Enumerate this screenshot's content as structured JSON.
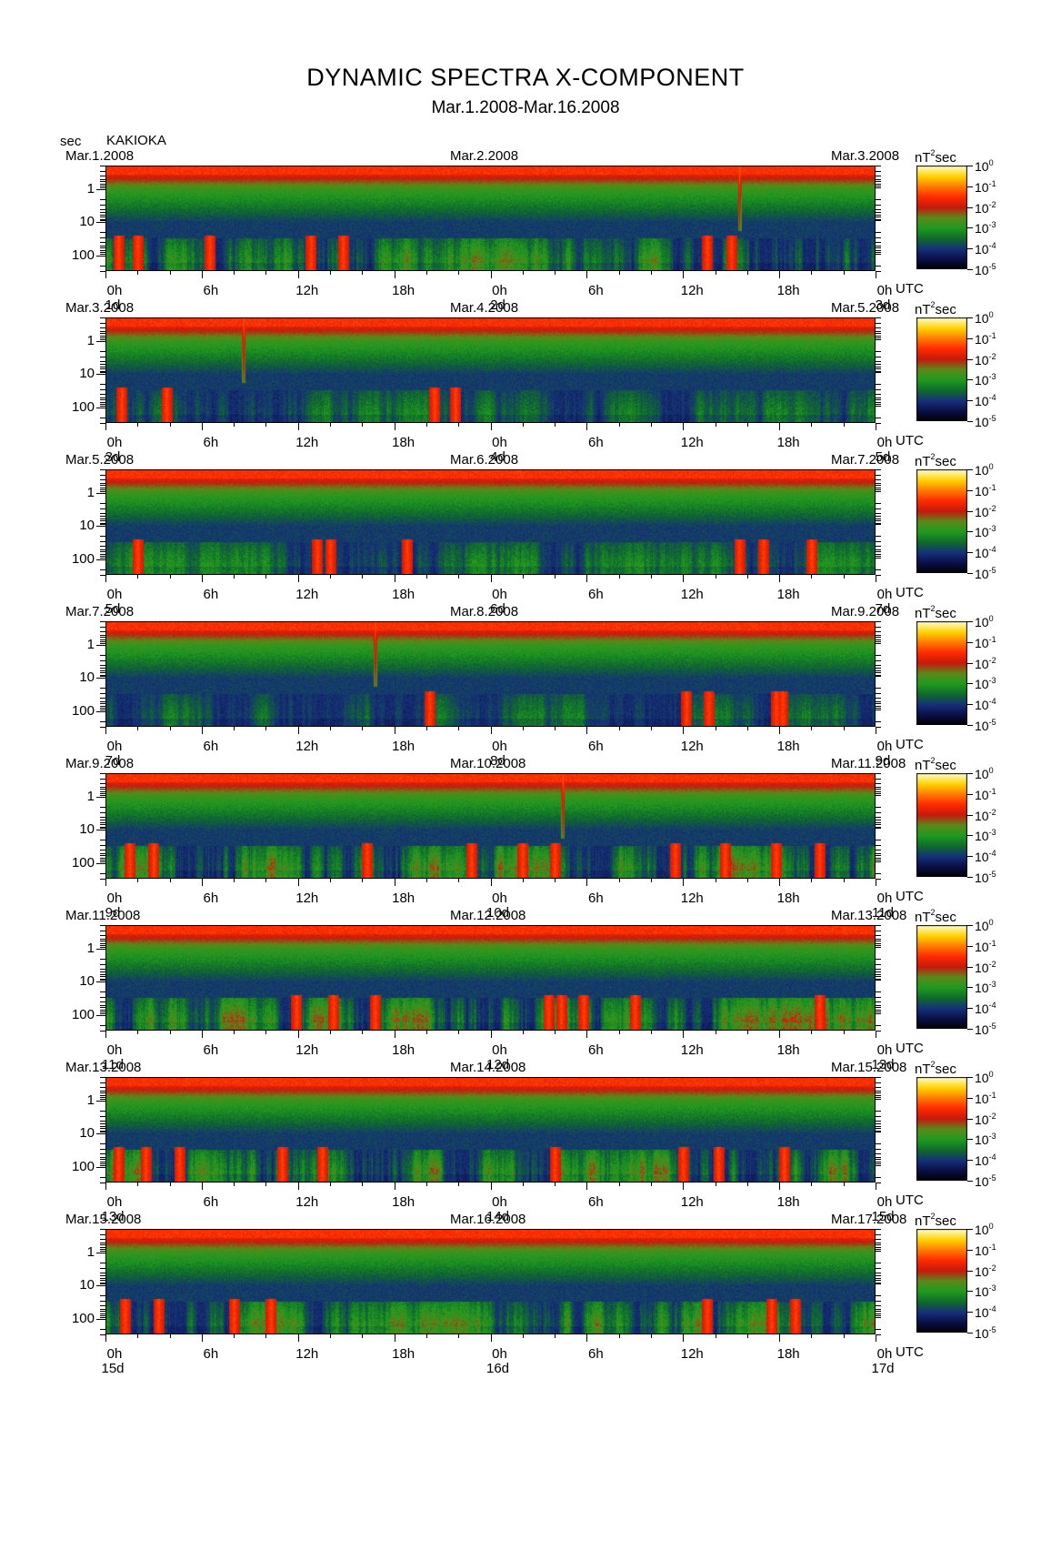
{
  "header": {
    "title": "DYNAMIC SPECTRA X-COMPONENT",
    "subtitle": "Mar.1.2008-Mar.16.2008",
    "y_unit": "sec",
    "station": "KAKIOKA"
  },
  "chart_data": {
    "type": "heatmap",
    "title": "DYNAMIC SPECTRA X-COMPONENT",
    "subtitle": "Mar.1.2008-Mar.16.2008",
    "station": "KAKIOKA",
    "ylabel": "sec",
    "y_scale": "log",
    "y_range_sec": [
      0.2,
      300
    ],
    "y_ticks": [
      "1",
      "10",
      "100"
    ],
    "x_tick_labels": [
      "0h",
      "6h",
      "12h",
      "18h",
      "0h",
      "6h",
      "12h",
      "18h",
      "0h"
    ],
    "x_hours": [
      0,
      6,
      12,
      18,
      24,
      30,
      36,
      42,
      48
    ],
    "x_axis_unit": "UTC",
    "colorbar": {
      "unit": "nT",
      "unit_power": "2",
      "unit_suffix": "sec",
      "scale": "log",
      "ticks": [
        {
          "base": "10",
          "exp": "0"
        },
        {
          "base": "10",
          "exp": "-1"
        },
        {
          "base": "10",
          "exp": "-2"
        },
        {
          "base": "10",
          "exp": "-3"
        },
        {
          "base": "10",
          "exp": "-4"
        },
        {
          "base": "10",
          "exp": "-5"
        }
      ],
      "colors": [
        "#000000",
        "#0a0f45",
        "#16307a",
        "#0f6a2c",
        "#1f9a1f",
        "#5a8a1a",
        "#c41a0d",
        "#ff2a00",
        "#ff7a00",
        "#ffd400",
        "#fffbd0"
      ]
    },
    "panels": [
      {
        "left_date": "Mar.1.2008",
        "mid_date": "Mar.2.2008",
        "right_date": "Mar.3.2008",
        "day_labels": [
          "1d",
          "2d",
          "3d"
        ],
        "seed": 11,
        "activity": 0.72,
        "events_hours": [
          0.8,
          2.0,
          6.5,
          12.8,
          14.8,
          37.5,
          39.0
        ],
        "spikes_hours": [
          39.5
        ]
      },
      {
        "left_date": "Mar.3.2008",
        "mid_date": "Mar.4.2008",
        "right_date": "Mar.5.2008",
        "day_labels": [
          "3d",
          "4d",
          "5d"
        ],
        "seed": 23,
        "activity": 0.42,
        "events_hours": [
          1.0,
          3.8,
          20.5,
          21.8
        ],
        "spikes_hours": [
          8.6
        ]
      },
      {
        "left_date": "Mar.5.2008",
        "mid_date": "Mar.6.2008",
        "right_date": "Mar.7.2008",
        "day_labels": [
          "5d",
          "6d",
          "7d"
        ],
        "seed": 37,
        "activity": 0.48,
        "events_hours": [
          2.0,
          13.2,
          14.0,
          18.8,
          39.5,
          41.0,
          44.0
        ],
        "spikes_hours": []
      },
      {
        "left_date": "Mar.7.2008",
        "mid_date": "Mar.8.2008",
        "right_date": "Mar.9.2008",
        "day_labels": [
          "7d",
          "8d",
          "9d"
        ],
        "seed": 41,
        "activity": 0.38,
        "events_hours": [
          20.2,
          36.2,
          37.6,
          41.8,
          42.2
        ],
        "spikes_hours": [
          16.8
        ]
      },
      {
        "left_date": "Mar.9.2008",
        "mid_date": "Mar.10.2008",
        "right_date": "Mar.11.2008",
        "day_labels": [
          "9d",
          "10d",
          "11d"
        ],
        "seed": 53,
        "activity": 0.85,
        "events_hours": [
          1.5,
          3.0,
          16.3,
          22.8,
          26.0,
          28.0,
          35.5,
          38.6,
          41.8,
          44.5
        ],
        "spikes_hours": [
          28.5
        ]
      },
      {
        "left_date": "Mar.11.2008",
        "mid_date": "Mar.12.2008",
        "right_date": "Mar.13.2008",
        "day_labels": [
          "11d",
          "12d",
          "13d"
        ],
        "seed": 67,
        "activity": 0.82,
        "events_hours": [
          11.9,
          14.2,
          16.8,
          27.6,
          28.4,
          29.8,
          33.0,
          44.5
        ],
        "spikes_hours": []
      },
      {
        "left_date": "Mar.13.2008",
        "mid_date": "Mar.14.2008",
        "right_date": "Mar.15.2008",
        "day_labels": [
          "13d",
          "14d",
          "15d"
        ],
        "seed": 79,
        "activity": 0.8,
        "events_hours": [
          0.8,
          2.5,
          4.6,
          11.0,
          13.5,
          28.0,
          36.0,
          38.2,
          42.3
        ],
        "spikes_hours": []
      },
      {
        "left_date": "Mar.15.2008",
        "mid_date": "Mar.16.2008",
        "right_date": "Mar.17.2008",
        "day_labels": [
          "15d",
          "16d",
          "17d"
        ],
        "seed": 97,
        "activity": 0.7,
        "events_hours": [
          1.2,
          3.3,
          8.0,
          10.3,
          37.5,
          41.5,
          43.0
        ],
        "spikes_hours": []
      }
    ]
  }
}
